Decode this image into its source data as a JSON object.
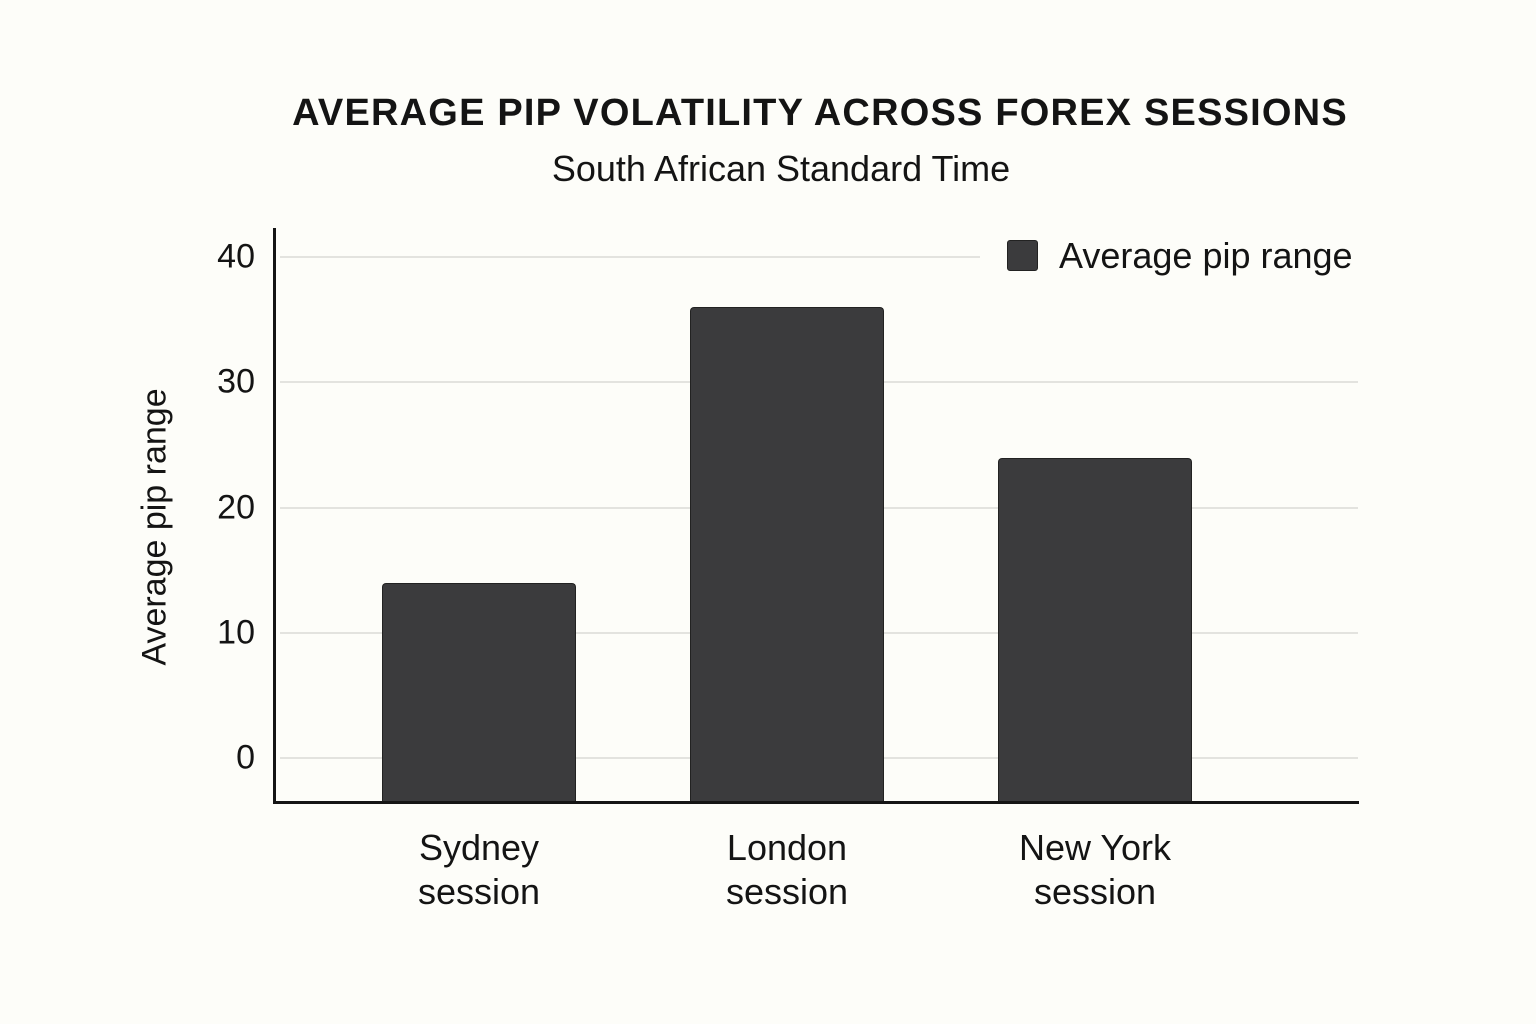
{
  "chart_data": {
    "type": "bar",
    "title": "AVERAGE PIP VOLATILITY ACROSS FOREX SESSIONS",
    "subtitle": "South African Standard Time",
    "xlabel": "",
    "ylabel": "Average pip range",
    "categories": [
      "Sydney session",
      "London session",
      "New York session"
    ],
    "category_lines": [
      [
        "Sydney",
        "session"
      ],
      [
        "London",
        "session"
      ],
      [
        "New York",
        "session"
      ]
    ],
    "series": [
      {
        "name": "Average pip range",
        "values": [
          14,
          36,
          24
        ],
        "color": "#3b3b3d"
      }
    ],
    "yticks": [
      "0",
      "10",
      "20",
      "30",
      "40"
    ],
    "ylim": [
      0,
      40
    ],
    "grid": true,
    "legend_position": "top-right"
  }
}
